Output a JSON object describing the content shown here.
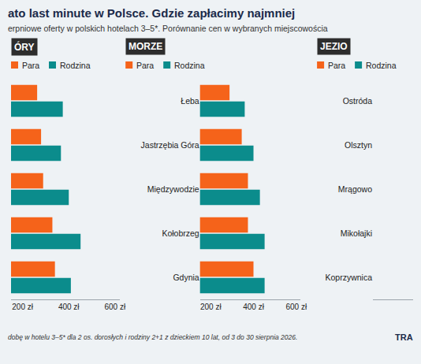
{
  "title": "ato last minute w Polsce. Gdzie zapłacimy najmniej",
  "subtitle": "erpniowe oferty w polskich hotelach 3–5*. Porównanie cen w wybranych miejscowościa",
  "footnote": "dobę w hotelu 3–5* dla 2 os. dorosłych i rodziny 2+1 z dzieckiem 10 lat, od 3 do 30 sierpnia 2026.",
  "source": "TRA",
  "chart_data": [
    {
      "type": "bar",
      "title": "ÓRY",
      "orientation": "horizontal",
      "legend": "top left",
      "grid": false,
      "tick_labels": "x",
      "categories": [
        null,
        null,
        null,
        null,
        null
      ],
      "series": [
        {
          "name": "Para",
          "color": "#f5631a",
          "values": [
            263,
            280,
            289,
            329,
            340
          ]
        },
        {
          "name": "Rodzina",
          "color": "#0b8c8c",
          "values": [
            374,
            366,
            400,
            451,
            409
          ]
        }
      ],
      "xlim": [
        150,
        620
      ],
      "xticks": [
        {
          "value": 200,
          "label": "200 zł"
        },
        {
          "value": 400,
          "label": "400 zł"
        },
        {
          "value": 600,
          "label": "600 zł"
        }
      ]
    },
    {
      "type": "bar",
      "title": "MORZE",
      "orientation": "horizontal",
      "legend": "top left",
      "grid": false,
      "categories": [
        "Łeba",
        "Jastrzębia Góra",
        "Międzywodzie",
        "Kołobrzeg",
        "Gdynia"
      ],
      "series": [
        {
          "name": "Para",
          "color": "#f5631a",
          "values": [
            288,
            345,
            374,
            374,
            400
          ]
        },
        {
          "name": "Rodzina",
          "color": "#0b8c8c",
          "values": [
            359,
            400,
            430,
            452,
            452
          ]
        }
      ],
      "xlim": [
        150,
        620
      ],
      "xticks": [
        {
          "value": 200,
          "label": "200 zł"
        },
        {
          "value": 400,
          "label": "400 zł"
        },
        {
          "value": 600,
          "label": "600 zł"
        }
      ]
    },
    {
      "type": "bar",
      "title": "JEZIO",
      "orientation": "horizontal",
      "legend": "top left",
      "grid": false,
      "tick_labels": "y",
      "categories": [
        "Ostróda",
        "Olsztyn",
        "Mrągowo",
        "Mikołajki",
        "Koprzywnica"
      ],
      "series": [
        {
          "name": "Para",
          "color": "#f5631a",
          "values": [
            null,
            null,
            null,
            null,
            null
          ]
        },
        {
          "name": "Rodzina",
          "color": "#0b8c8c",
          "values": [
            null,
            null,
            null,
            null,
            null
          ]
        }
      ],
      "xlim": [
        150,
        620
      ]
    }
  ]
}
